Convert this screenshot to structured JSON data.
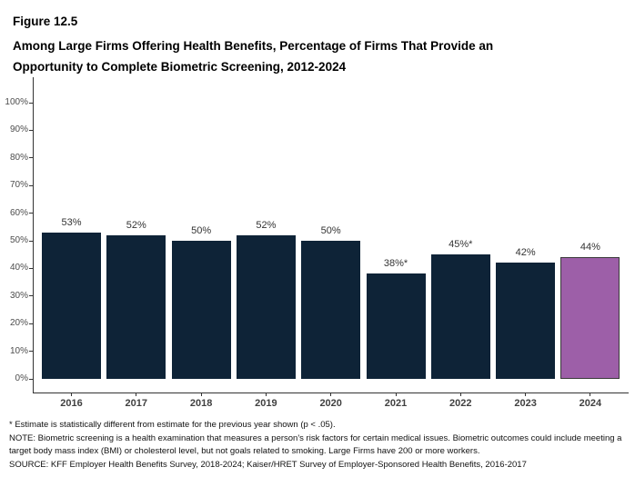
{
  "header": {
    "figure_label": "Figure 12.5",
    "title": "Among Large Firms Offering Health Benefits, Percentage of Firms That Provide an Opportunity to Complete Biometric Screening, 2012-2024"
  },
  "chart_data": {
    "type": "bar",
    "categories": [
      "2016",
      "2017",
      "2018",
      "2019",
      "2020",
      "2021",
      "2022",
      "2023",
      "2024"
    ],
    "values": [
      53,
      52,
      50,
      52,
      50,
      38,
      45,
      42,
      44
    ],
    "bar_labels": [
      "53%",
      "52%",
      "50%",
      "52%",
      "50%",
      "38%*",
      "45%*",
      "42%",
      "44%"
    ],
    "bar_color": "#0E2337",
    "highlight_index": 8,
    "highlight_color": "#9D5FA8",
    "highlight_border_color": "#3A3A3A",
    "title": "Among Large Firms Offering Health Benefits, Percentage of Firms That Provide an Opportunity to Complete Biometric Screening, 2012-2024",
    "xlabel": "",
    "ylabel": "",
    "ylim": [
      0,
      100
    ],
    "ytick_step": 10,
    "ytick_labels": [
      "0%",
      "10%",
      "20%",
      "30%",
      "40%",
      "50%",
      "60%",
      "70%",
      "80%",
      "90%",
      "100%"
    ],
    "grid": false,
    "legend": "none"
  },
  "footnotes": [
    "* Estimate is statistically different from estimate for the previous year shown (p < .05).",
    "NOTE: Biometric screening is a health examination that measures a person's risk factors for certain medical issues. Biometric outcomes could include meeting a target body mass index (BMI) or cholesterol level, but not goals related to smoking. Large Firms have 200 or more workers.",
    "SOURCE: KFF Employer Health Benefits Survey, 2018-2024; Kaiser/HRET Survey of Employer-Sponsored Health Benefits, 2016-2017"
  ]
}
